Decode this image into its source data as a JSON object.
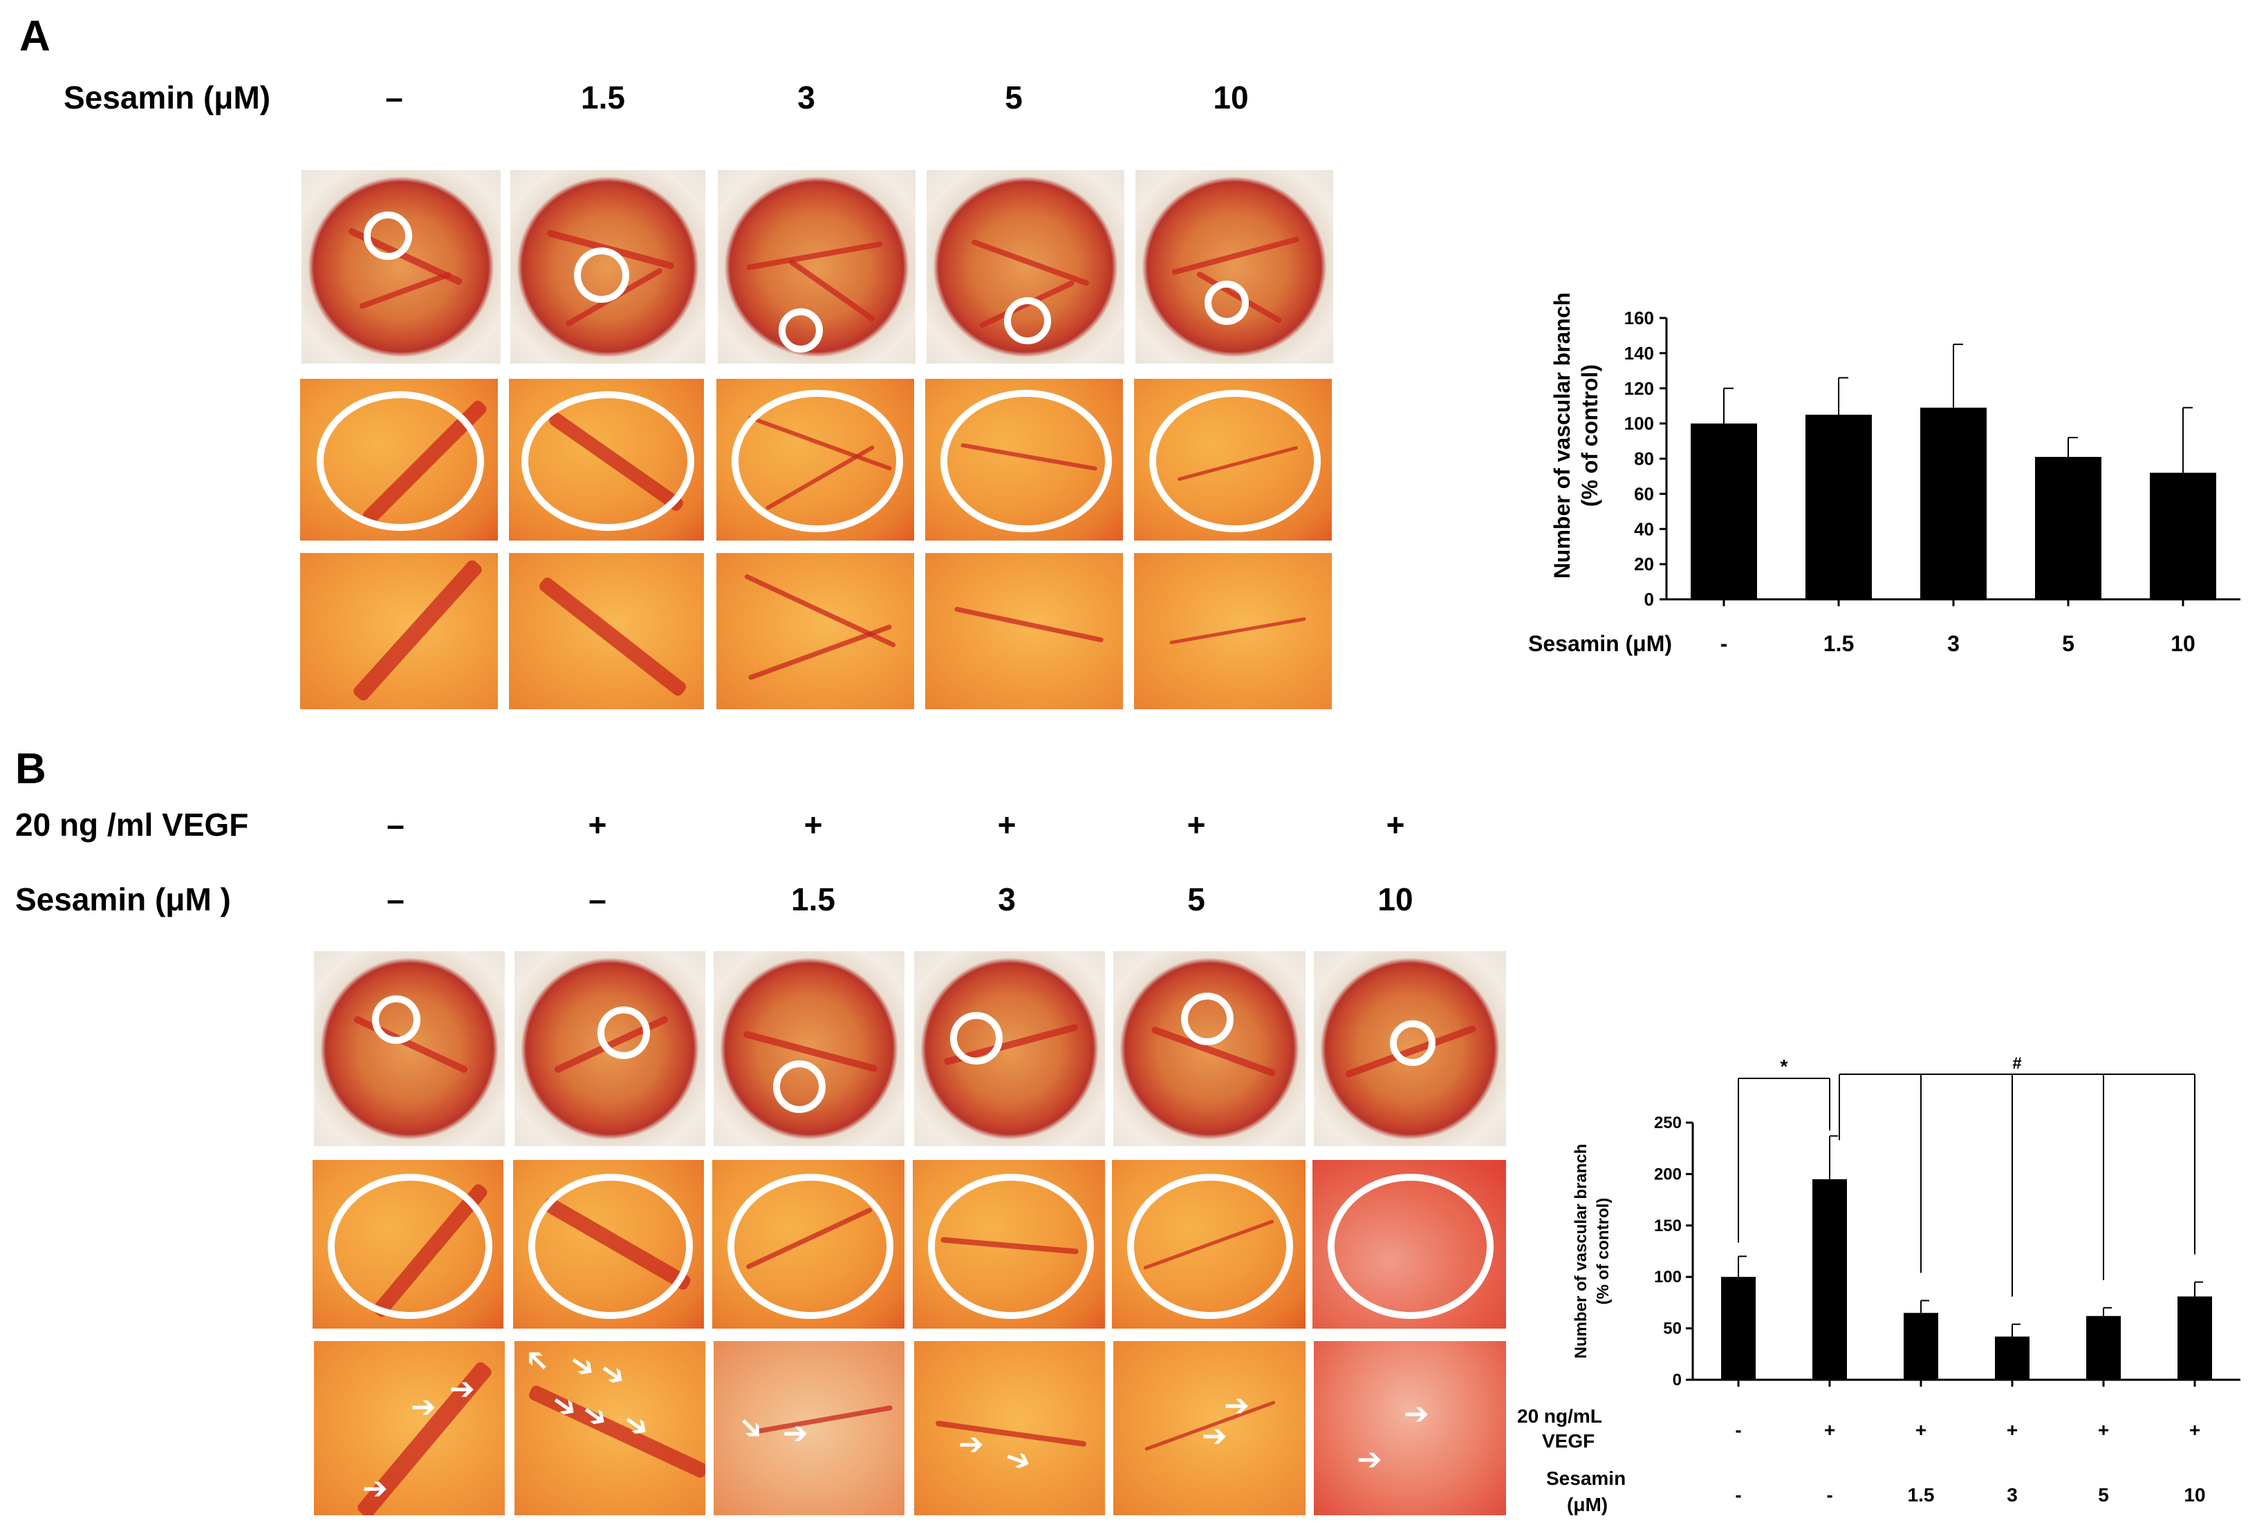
{
  "panel_a": {
    "letter": "A",
    "sesamin_label": "Sesamin  (μM)",
    "doses": [
      "–",
      "1.5",
      "3",
      "5",
      "10"
    ]
  },
  "panel_b": {
    "letter": "B",
    "vegf_label": "20  ng /ml VEGF",
    "sesamin_label": "Sesamin   (μM )",
    "vegf_marks": [
      "–",
      "+",
      "+",
      "+",
      "+",
      "+"
    ],
    "doses": [
      "–",
      "–",
      "1.5",
      "3",
      "5",
      "10"
    ]
  },
  "colors": {
    "bar": "#000000",
    "shell": "#efe7de",
    "membrane": "#d9733a",
    "vessel": "#c8251d"
  },
  "chart_data": [
    {
      "type": "bar",
      "ylabel_line1": "Number of vascular branch",
      "ylabel_line2": "(% of control)",
      "ylim": [
        0,
        160
      ],
      "yticks": [
        "0",
        "20",
        "40",
        "60",
        "80",
        "100",
        "120",
        "140",
        "160"
      ],
      "xlabel": "Sesamin (μM)",
      "categories": [
        "-",
        "1.5",
        "3",
        "5",
        "10"
      ],
      "values": [
        100,
        105,
        109,
        81,
        72
      ],
      "errors": [
        20,
        21,
        36,
        11,
        37
      ]
    },
    {
      "type": "bar",
      "ylabel_line1": "Number of vascular branch",
      "ylabel_line2": "(% of control)",
      "ylim": [
        0,
        250
      ],
      "yticks": [
        "0",
        "50",
        "100",
        "150",
        "200",
        "250"
      ],
      "row1_label_line1": "20 ng/mL",
      "row1_label_line2": "VEGF",
      "row1": [
        "-",
        "+",
        "+",
        "+",
        "+",
        "+"
      ],
      "row2_label_line1": "Sesamin",
      "row2_label_line2": "(μM)",
      "row2": [
        "-",
        "-",
        "1.5",
        "3",
        "5",
        "10"
      ],
      "values": [
        100,
        195,
        65,
        42,
        62,
        81
      ],
      "errors": [
        20,
        42,
        12,
        12,
        8,
        14
      ],
      "sig_star": "*",
      "sig_hash": "#"
    }
  ]
}
